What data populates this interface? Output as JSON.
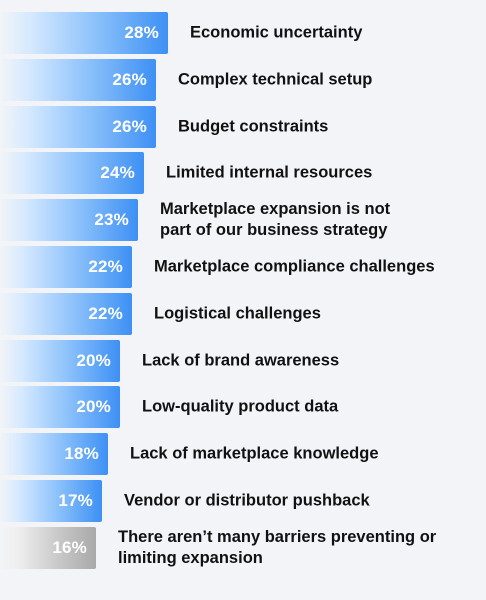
{
  "chart_data": {
    "type": "bar",
    "orientation": "horizontal",
    "unit": "%",
    "categories": [
      "Economic uncertainty",
      "Complex technical setup",
      "Budget constraints",
      "Limited internal resources",
      "Marketplace expansion is not\npart of our business strategy",
      "Marketplace compliance challenges",
      "Logistical challenges",
      "Lack of brand awareness",
      "Low-quality product data",
      "Lack of marketplace knowledge",
      "Vendor or distributor pushback",
      "There aren’t many barriers preventing or\nlimiting expansion"
    ],
    "values": [
      28,
      26,
      26,
      24,
      23,
      22,
      22,
      20,
      20,
      18,
      17,
      16
    ],
    "value_labels": [
      "28%",
      "26%",
      "26%",
      "24%",
      "23%",
      "22%",
      "22%",
      "20%",
      "20%",
      "18%",
      "17%",
      "16%"
    ],
    "title": "",
    "xlabel": "",
    "ylabel": "",
    "grid": false,
    "colors": {
      "bar": "#3d90f4",
      "highlight_last": "#a9a9a9",
      "label_text": "#111111",
      "value_text": "#ffffff"
    }
  }
}
